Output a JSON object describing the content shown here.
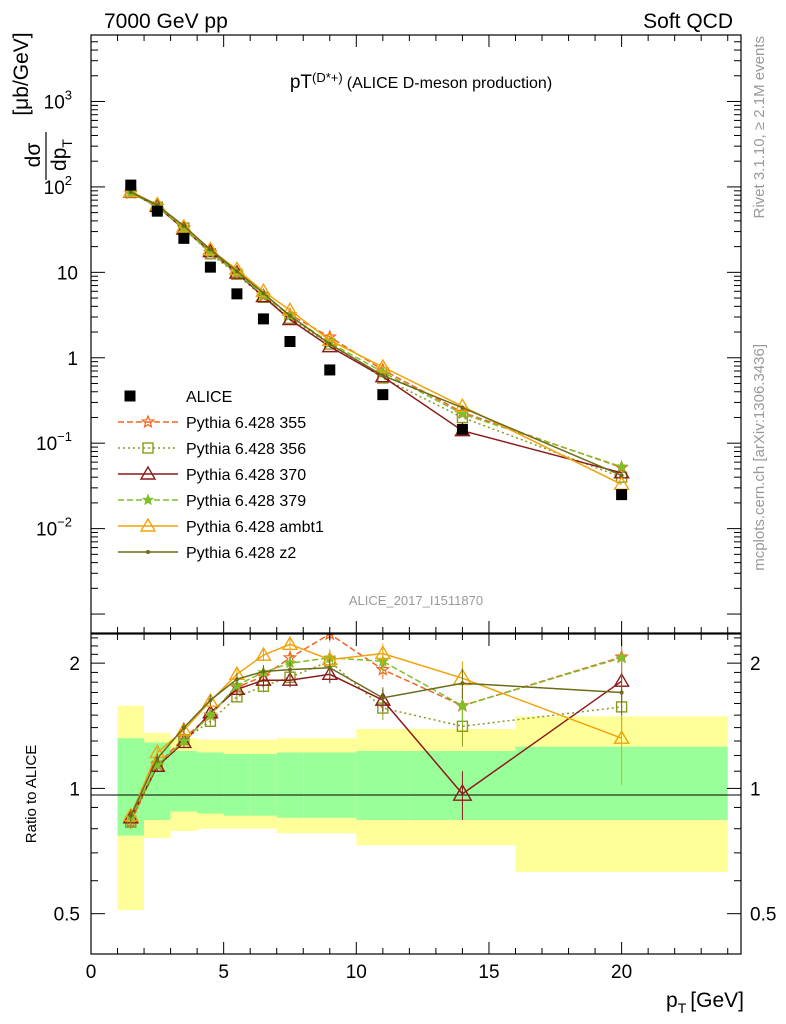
{
  "header": {
    "left": "7000 GeV pp",
    "right": "Soft QCD"
  },
  "side": {
    "rivet": "Rivet 3.1.10, ≥ 2.1M events",
    "mcplots": "mcplots.cern.ch [arXiv:1306.3436]"
  },
  "chart_data": {
    "type": "line",
    "title_main": "pT",
    "title_sup": "(D*+)",
    "title_rest": "(ALICE D-meson production)",
    "analysis": "ALICE_2017_I1511870",
    "ylabel_num": "dσ",
    "ylabel_den": "dp",
    "ylabel_sub": "T",
    "ylabel_unit": "[μb/GeV]",
    "xlabel": "p",
    "xlabel_sub": "T",
    "xlabel_unit": "[GeV]",
    "ratio_ylabel": "Ratio to ALICE",
    "xlim": [
      0,
      24.5
    ],
    "ylim": [
      0.0006,
      6000
    ],
    "yscale": "log",
    "ratio_ylim": [
      0.4,
      2.35
    ],
    "x_ticks": [
      "0",
      "5",
      "10",
      "15",
      "20"
    ],
    "y_ticks": [
      {
        "base": "10",
        "exp": "3"
      },
      {
        "base": "10",
        "exp": "2"
      },
      {
        "base": "10",
        "exp": ""
      },
      {
        "base": "1",
        "exp": ""
      },
      {
        "base": "10",
        "exp": "−1"
      },
      {
        "base": "10",
        "exp": "−2"
      }
    ],
    "ratio_ticks": [
      "0.5",
      "1",
      "2"
    ],
    "x": [
      1.5,
      2.5,
      3.5,
      4.5,
      5.5,
      6.5,
      7.5,
      9,
      11,
      14,
      20
    ],
    "data": {
      "name": "ALICE",
      "values": [
        105,
        52,
        25,
        11.5,
        5.6,
        2.85,
        1.55,
        0.72,
        0.37,
        0.145,
        0.025
      ],
      "bins": [
        [
          1,
          2
        ],
        [
          2,
          3
        ],
        [
          3,
          4
        ],
        [
          4,
          5
        ],
        [
          5,
          6
        ],
        [
          6,
          7
        ],
        [
          7,
          8
        ],
        [
          8,
          10
        ],
        [
          10,
          12
        ],
        [
          12,
          16
        ],
        [
          16,
          24
        ]
      ],
      "band_inner": [
        [
          0.77,
          1.32
        ],
        [
          0.84,
          1.29
        ],
        [
          0.88,
          1.23
        ],
        [
          0.87,
          1.22
        ],
        [
          0.86,
          1.21
        ],
        [
          0.86,
          1.21
        ],
        [
          0.85,
          1.22
        ],
        [
          0.85,
          1.22
        ],
        [
          0.84,
          1.23
        ],
        [
          0.84,
          1.23
        ],
        [
          0.84,
          1.26
        ]
      ],
      "band_outer": [
        [
          0.51,
          1.58
        ],
        [
          0.76,
          1.36
        ],
        [
          0.79,
          1.32
        ],
        [
          0.8,
          1.31
        ],
        [
          0.8,
          1.31
        ],
        [
          0.8,
          1.31
        ],
        [
          0.78,
          1.32
        ],
        [
          0.78,
          1.32
        ],
        [
          0.73,
          1.39
        ],
        [
          0.73,
          1.39
        ],
        [
          0.63,
          1.49
        ]
      ]
    },
    "series": [
      {
        "name": "Pythia 6.428 355",
        "color": "#f26522",
        "dash": "6,3",
        "marker": "star-open",
        "values": [
          85,
          59,
          33,
          17,
          9.8,
          5.3,
          3.2,
          1.75,
          0.72,
          0.23,
          0.052
        ],
        "ratio": [
          0.83,
          1.14,
          1.32,
          1.5,
          1.75,
          1.86,
          2.06,
          2.35,
          1.93,
          1.58,
          2.07
        ],
        "ratio_err": [
          0.03,
          0.03,
          0.04,
          0.04,
          0.05,
          0.06,
          0.08,
          0.1,
          0.1,
          0.15,
          0.2
        ]
      },
      {
        "name": "Pythia 6.428 356",
        "color": "#8b9a1e",
        "dash": "2,3",
        "marker": "square-open",
        "values": [
          86,
          58,
          33,
          16.5,
          9.5,
          5.1,
          2.9,
          1.45,
          0.58,
          0.2,
          0.04
        ],
        "ratio": [
          0.83,
          1.13,
          1.31,
          1.45,
          1.66,
          1.76,
          1.85,
          2.02,
          1.56,
          1.41,
          1.57
        ],
        "ratio_err": [
          0.03,
          0.03,
          0.04,
          0.04,
          0.05,
          0.06,
          0.07,
          0.1,
          0.1,
          0.15,
          0.2
        ]
      },
      {
        "name": "Pythia 6.428 370",
        "color": "#8b1a1a",
        "dash": "",
        "marker": "triangle-open",
        "values": [
          87,
          59,
          32,
          17.5,
          9.8,
          5.2,
          2.8,
          1.35,
          0.6,
          0.14,
          0.045
        ],
        "ratio": [
          0.85,
          1.13,
          1.29,
          1.52,
          1.73,
          1.82,
          1.82,
          1.88,
          1.63,
          0.97,
          1.81
        ],
        "ratio_err": [
          0.03,
          0.03,
          0.04,
          0.04,
          0.05,
          0.06,
          0.07,
          0.09,
          0.1,
          0.13,
          0.2
        ]
      },
      {
        "name": "Pythia 6.428 379",
        "color": "#7fbf2a",
        "dash": "6,3",
        "marker": "star-filled",
        "values": [
          85,
          59,
          32.5,
          17,
          9.9,
          5.4,
          3.1,
          1.5,
          0.68,
          0.22,
          0.053
        ],
        "ratio": [
          0.85,
          1.14,
          1.3,
          1.5,
          1.77,
          1.9,
          2.0,
          2.06,
          2.02,
          1.58,
          2.06
        ],
        "ratio_err": [
          0.03,
          0.03,
          0.04,
          0.04,
          0.05,
          0.06,
          0.08,
          0.1,
          0.12,
          0.16,
          0.22
        ]
      },
      {
        "name": "Pythia 6.428 ambt1",
        "color": "#f0a30a",
        "dash": "",
        "marker": "triangle-open",
        "values": [
          88,
          62,
          34,
          18.5,
          10.8,
          6,
          3.6,
          1.6,
          0.78,
          0.27,
          0.033
        ],
        "ratio": [
          0.86,
          1.22,
          1.38,
          1.62,
          1.88,
          2.09,
          2.22,
          2.04,
          2.11,
          1.84,
          1.32
        ],
        "ratio_err": [
          0.03,
          0.03,
          0.04,
          0.05,
          0.06,
          0.07,
          0.08,
          0.1,
          0.12,
          0.18,
          0.3
        ]
      },
      {
        "name": "Pythia 6.428 z2",
        "color": "#6b6b1a",
        "dash": "",
        "marker": "dot",
        "values": [
          87,
          61,
          35,
          18.5,
          10.3,
          5.7,
          3.1,
          1.45,
          0.62,
          0.26,
          0.042
        ],
        "ratio": [
          0.86,
          1.18,
          1.4,
          1.63,
          1.83,
          1.91,
          1.93,
          1.95,
          1.65,
          1.79,
          1.7
        ],
        "ratio_err": [
          0.03,
          0.03,
          0.04,
          0.05,
          0.06,
          0.07,
          0.08,
          0.1,
          0.1,
          0.15,
          0.2
        ]
      }
    ]
  }
}
